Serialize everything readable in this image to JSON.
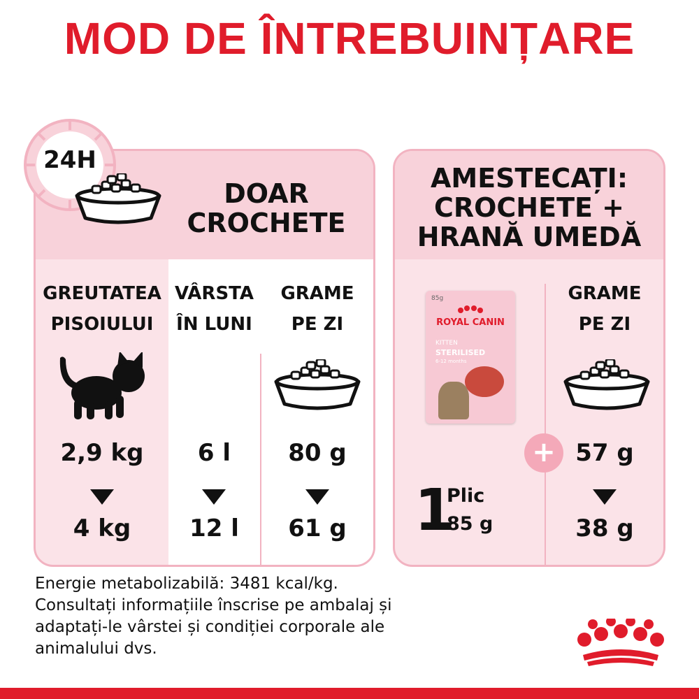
{
  "title": "MOD DE ÎNTREBUINȚARE",
  "clock_label": "24H",
  "left_panel": {
    "heading_line1": "DOAR",
    "heading_line2": "CROCHETE",
    "col1_header_line1": "GREUTATEA",
    "col1_header_line2": "PISOIULUI",
    "col2_header_line1": "VÂRSTA",
    "col2_header_line2": "ÎN LUNI",
    "col3_header_line1": "GRAME",
    "col3_header_line2": "PE ZI",
    "weight_from": "2,9 kg",
    "weight_to": "4 kg",
    "age_from": "6 l",
    "age_to": "12 l",
    "grams_from": "80 g",
    "grams_to": "61 g"
  },
  "right_panel": {
    "heading_line1": "AMESTECAȚI:",
    "heading_line2": "CROCHETE +",
    "heading_line3": "HRANĂ UMEDĂ",
    "col_header_line1": "GRAME",
    "col_header_line2": "PE ZI",
    "pouch": {
      "weight": "85g",
      "brand": "ROYAL CANIN",
      "line1": "KITTEN",
      "line2": "STERILISED",
      "line3": "6-12 months"
    },
    "plic_number": "1",
    "plic_label": "Plic",
    "plic_weight": "85 g",
    "grams_from": "57 g",
    "grams_to": "38 g"
  },
  "footer": {
    "line1": "Energie metabolizabilă: 3481 kcal/kg.",
    "line2": "Consultați informațiile înscrise pe ambalaj și",
    "line3": "adaptați-le vârstei și condiției corporale ale",
    "line4": "animalului dvs."
  },
  "colors": {
    "brand_red": "#e01c2b",
    "panel_pink": "#fbe3e8",
    "panel_border": "#f2b3c1",
    "header_pink": "#f8d2da"
  }
}
